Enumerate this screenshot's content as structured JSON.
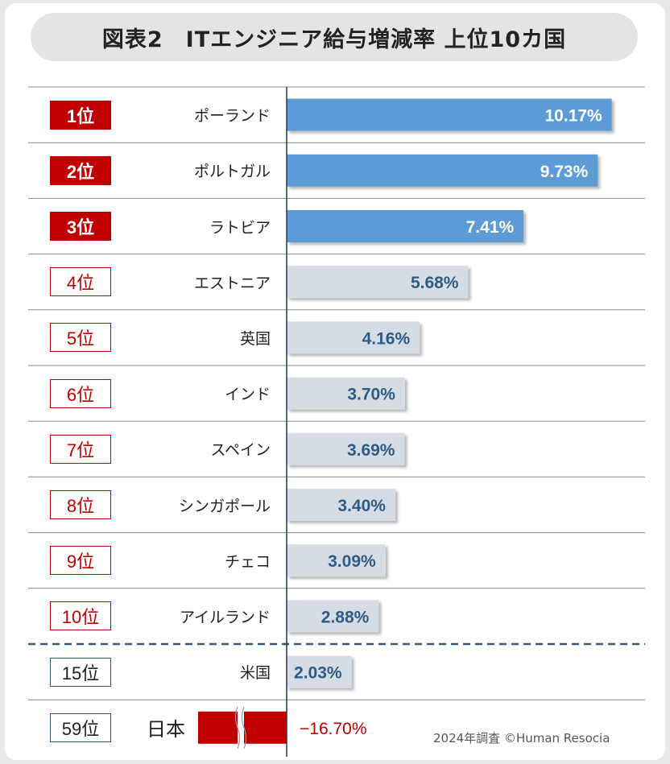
{
  "title": "図表2　ITエンジニア給与増減率 上位10カ国",
  "source": "2024年調査 ©Human Resocia",
  "colors": {
    "bar_top": "#5b9bd5",
    "bar_other": "#d6dce4",
    "bar_japan": "#c00000",
    "rank_red": "#c00000",
    "value_blue_text": "#2d5b84",
    "dashed_line": "#2d5b84"
  },
  "chart_data": {
    "type": "bar",
    "orientation": "horizontal",
    "title": "ITエンジニア給与増減率 上位10カ国",
    "unit": "%",
    "axis_break": "Japan bar is truncated with a break mark (value off scale)",
    "rows": [
      {
        "rank": "1位",
        "country": "ポーランド",
        "value": 10.17,
        "label": "10.17%",
        "tier": "top"
      },
      {
        "rank": "2位",
        "country": "ポルトガル",
        "value": 9.73,
        "label": "9.73%",
        "tier": "top"
      },
      {
        "rank": "3位",
        "country": "ラトビア",
        "value": 7.41,
        "label": "7.41%",
        "tier": "top"
      },
      {
        "rank": "4位",
        "country": "エストニア",
        "value": 5.68,
        "label": "5.68%",
        "tier": "mid"
      },
      {
        "rank": "5位",
        "country": "英国",
        "value": 4.16,
        "label": "4.16%",
        "tier": "mid"
      },
      {
        "rank": "6位",
        "country": "インド",
        "value": 3.7,
        "label": "3.70%",
        "tier": "mid"
      },
      {
        "rank": "7位",
        "country": "スペイン",
        "value": 3.69,
        "label": "3.69%",
        "tier": "mid"
      },
      {
        "rank": "8位",
        "country": "シンガポール",
        "value": 3.4,
        "label": "3.40%",
        "tier": "mid"
      },
      {
        "rank": "9位",
        "country": "チェコ",
        "value": 3.09,
        "label": "3.09%",
        "tier": "mid"
      },
      {
        "rank": "10位",
        "country": "アイルランド",
        "value": 2.88,
        "label": "2.88%",
        "tier": "mid"
      },
      {
        "rank": "15位",
        "country": "米国",
        "value": 2.03,
        "label": "2.03%",
        "tier": "us"
      },
      {
        "rank": "59位",
        "country": "日本",
        "value": -16.7,
        "label": "−16.70%",
        "tier": "japan"
      }
    ]
  }
}
